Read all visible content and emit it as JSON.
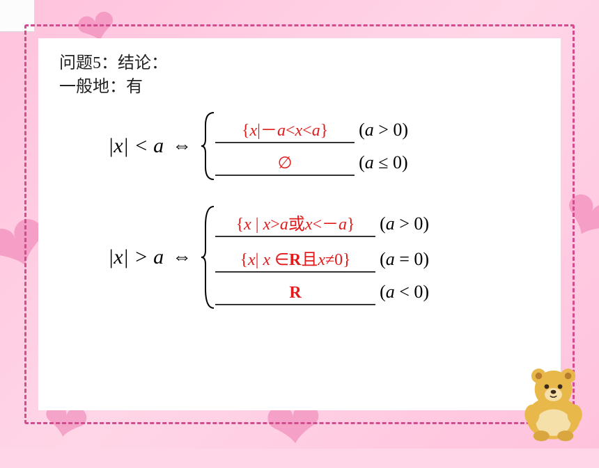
{
  "header": {
    "line1": "问题5：结论：",
    "line2": "一般地：有"
  },
  "eq1": {
    "lhs_html": "|<span class='it'>x</span>| &lt; <span class='it'>a</span>",
    "cases": [
      {
        "answer_html": "<span class='op'>{</span><span class='set-text'>x</span><span class='op'>|－</span><span class='set-text'>a</span><span class='op'>&lt;</span><span class='set-text'>x</span><span class='op'>&lt;</span><span class='set-text'>a</span><span class='op'>}</span>",
        "cond_html": "(<span class='it'>a</span> &gt; 0)"
      },
      {
        "answer_html": "<span class='op'>∅</span>",
        "cond_html": "(<span class='it'>a</span> ≤ 0)"
      }
    ],
    "brace_height": 100
  },
  "eq2": {
    "lhs_html": "|<span class='it'>x</span>| &gt; <span class='it'>a</span>",
    "cases": [
      {
        "answer_html": "<span class='op'>{</span><span class='set-text'>x </span><span class='op'>| </span><span class='set-text'>x</span><span class='op'>&gt;</span><span class='set-text'>a</span><span class='cn'>或</span><span class='set-text'>x</span><span class='op'>&lt;－</span><span class='set-text'>a</span><span class='op'>}</span>",
        "cond_html": "(<span class='it'>a</span> &gt; 0)"
      },
      {
        "answer_html": "<span class='op'>{</span><span class='set-text'>x</span><span class='op'>| </span><span class='set-text'>x </span><span class='op'>∈</span><span class='bold'>R</span><span class='cn'>且</span><span class='set-text'>x</span><span class='op'>≠0}</span>",
        "cond_html": "(<span class='it'>a</span> = 0)"
      },
      {
        "answer_html": "<span class='bold'>R</span>",
        "cond_html": "(<span class='it'>a</span> &lt; 0)"
      }
    ],
    "brace_height": 150
  },
  "colors": {
    "bg": "#ffd6e7",
    "dash_border": "#d14d8f",
    "card_bg": "#ffffff",
    "answer_text": "#e11b1b",
    "underline": "#333333",
    "heart": "#e85d9e"
  }
}
